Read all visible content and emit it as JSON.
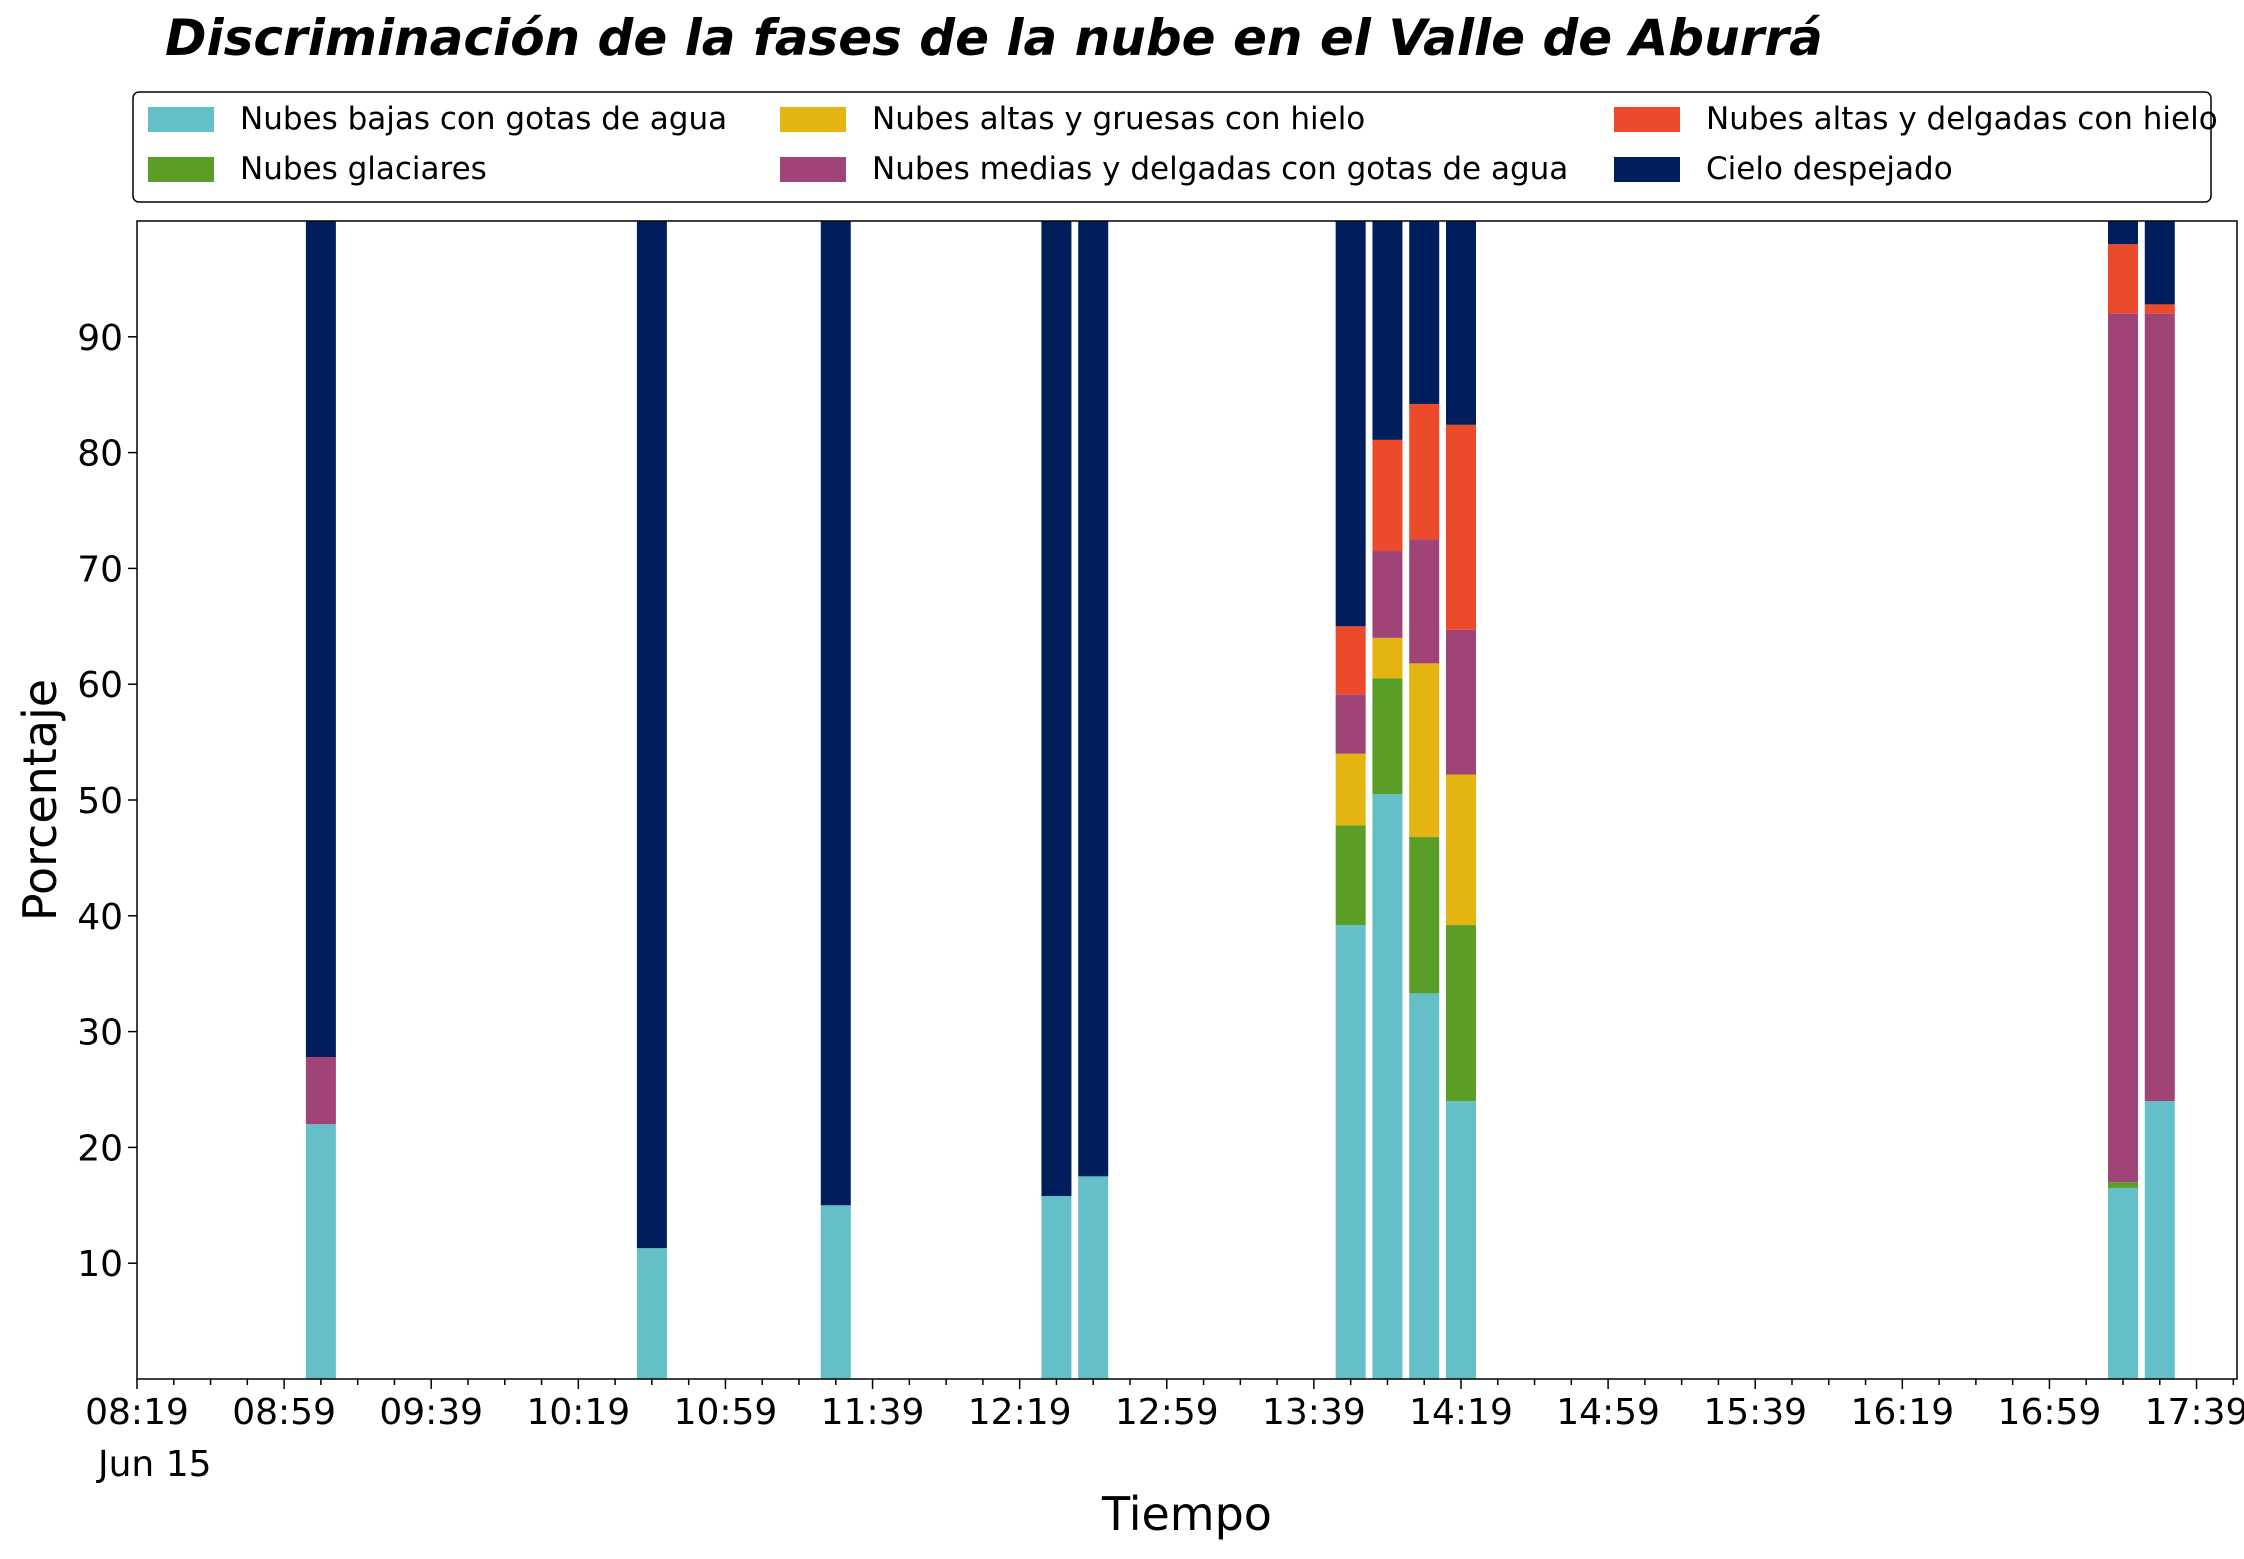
{
  "chart_data": {
    "type": "bar",
    "stacked": true,
    "title": "Discriminación de la fases de la nube en el Valle de Aburrá",
    "xlabel": "Tiempo",
    "ylabel": "Porcentaje",
    "ylim": [
      0,
      100
    ],
    "yticks": [
      10,
      20,
      30,
      40,
      50,
      60,
      70,
      80,
      90
    ],
    "xlim": [
      "08:19",
      "17:50"
    ],
    "xticks": [
      "08:19",
      "08:59",
      "09:39",
      "10:19",
      "10:59",
      "11:39",
      "12:19",
      "12:59",
      "13:39",
      "14:19",
      "14:59",
      "15:39",
      "16:19",
      "16:59",
      "17:39"
    ],
    "x_date_label": "Jun 15",
    "grid": false,
    "legend_position": "top",
    "x": [
      "09:09",
      "10:39",
      "11:29",
      "12:29",
      "12:39",
      "13:49",
      "13:59",
      "14:09",
      "14:19",
      "17:19",
      "17:29"
    ],
    "series": [
      {
        "name": "Nubes bajas con gotas de agua",
        "color": "#65bfc8",
        "values": [
          22.0,
          11.3,
          15.0,
          15.8,
          17.5,
          39.2,
          50.5,
          33.3,
          24.0,
          16.5,
          24.0
        ]
      },
      {
        "name": "Nubes glaciares",
        "color": "#5b9e27",
        "values": [
          0,
          0,
          0,
          0,
          0,
          8.6,
          10.0,
          13.5,
          15.2,
          0.5,
          0
        ]
      },
      {
        "name": "Nubes altas y gruesas con hielo",
        "color": "#e3b412",
        "values": [
          0,
          0,
          0,
          0,
          0,
          6.2,
          3.5,
          15.0,
          13.0,
          0,
          0
        ]
      },
      {
        "name": "Nubes medias y delgadas con gotas de agua",
        "color": "#a04478",
        "values": [
          5.8,
          0,
          0,
          0,
          0,
          5.1,
          7.5,
          10.7,
          12.5,
          75.0,
          68.0
        ]
      },
      {
        "name": "Nubes altas y delgadas con hielo",
        "color": "#ec4b2b",
        "values": [
          0,
          0,
          0,
          0,
          0,
          5.9,
          9.6,
          11.7,
          17.7,
          6.0,
          0.8
        ]
      },
      {
        "name": "Cielo despejado",
        "color": "#001e5c",
        "values": [
          72.2,
          88.7,
          85.0,
          84.2,
          82.5,
          35.0,
          18.9,
          15.8,
          17.6,
          2.0,
          7.2
        ]
      }
    ]
  }
}
